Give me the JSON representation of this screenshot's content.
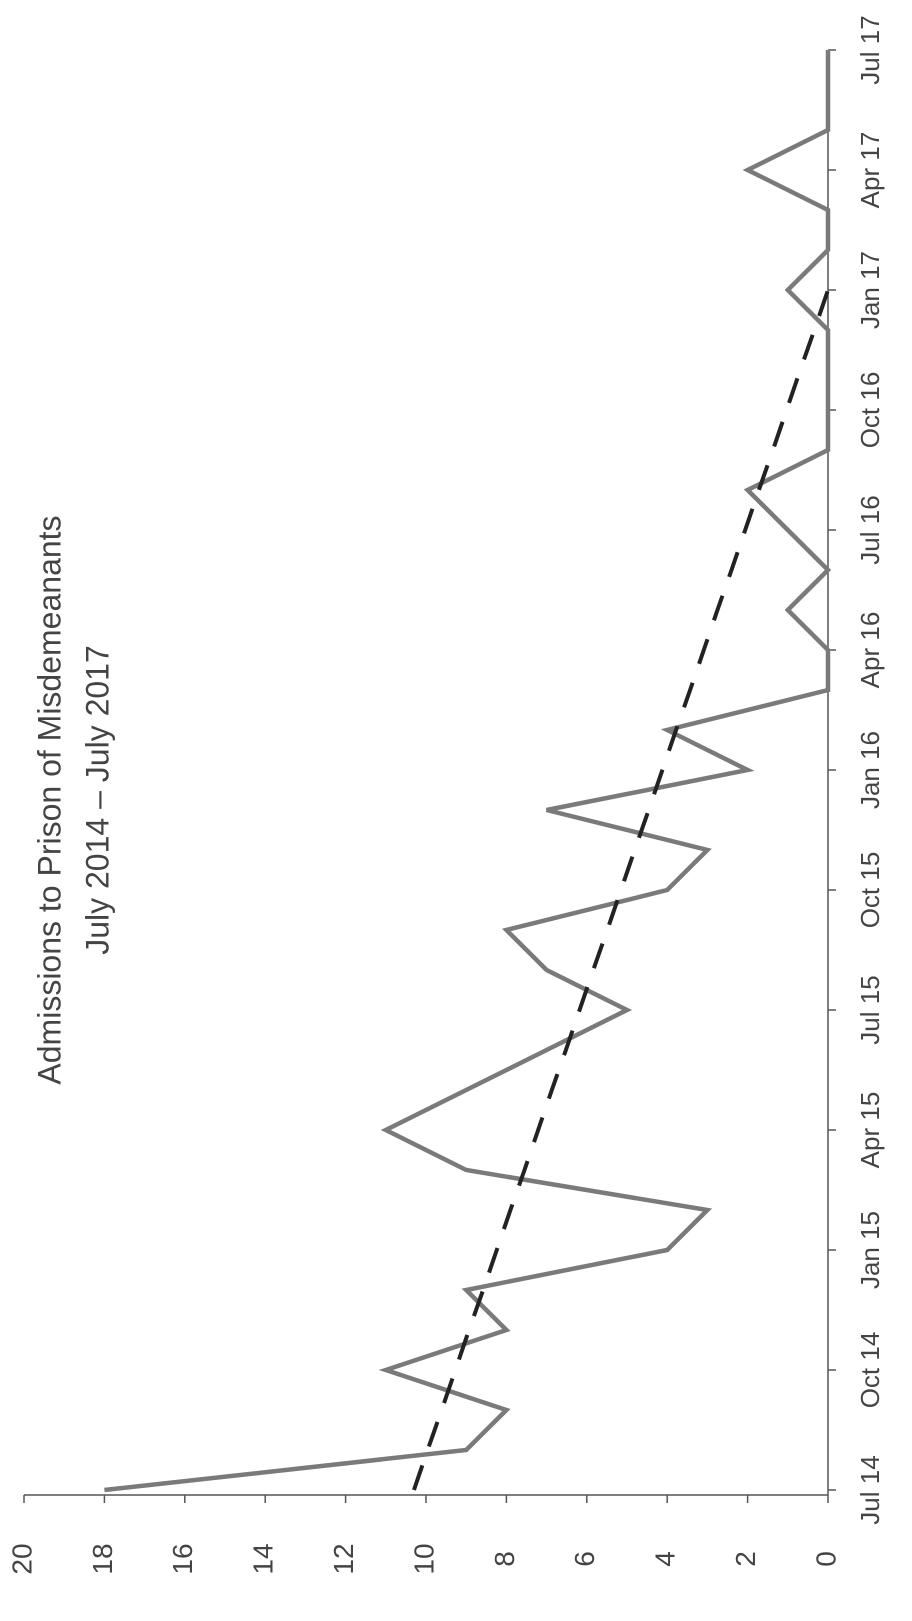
{
  "chart_data": {
    "type": "line",
    "title": "Admissions to Prison of Misdemeanants",
    "subtitle": "July 2014 – July 2017",
    "categories": [
      "Jul 14",
      null,
      null,
      "Oct 14",
      null,
      null,
      "Jan 15",
      null,
      null,
      "Apr 15",
      null,
      null,
      "Jul 15",
      null,
      null,
      "Oct 15",
      null,
      null,
      "Jan 16",
      null,
      null,
      "Apr 16",
      null,
      null,
      "Jul 16",
      null,
      null,
      "Oct 16",
      null,
      null,
      "Jan 17",
      null,
      null,
      "Apr 17",
      null,
      null,
      "Jul 17"
    ],
    "series": [
      {
        "color": "#7a7a7a",
        "style": "solid",
        "values": [
          18,
          9,
          8,
          11,
          8,
          9,
          4,
          3,
          9,
          11,
          9,
          7,
          5,
          7,
          8,
          4,
          3,
          7,
          2,
          4,
          0,
          0,
          1,
          0,
          1,
          2,
          0,
          0,
          0,
          0,
          1,
          0,
          0,
          2,
          0,
          0,
          0
        ]
      },
      {
        "color": "#222222",
        "style": "dashed",
        "values": [
          10.3,
          9.96,
          9.61,
          9.27,
          8.93,
          8.58,
          8.24,
          7.9,
          7.55,
          7.21,
          6.87,
          6.52,
          6.18,
          5.84,
          5.49,
          5.15,
          4.81,
          4.46,
          4.12,
          3.78,
          3.43,
          3.09,
          2.75,
          2.4,
          2.06,
          1.72,
          1.37,
          1.03,
          0.69,
          0.34,
          0.0,
          null,
          null,
          null,
          null,
          null,
          null
        ]
      }
    ],
    "ylim": [
      0,
      20
    ],
    "yticks": [
      0,
      2,
      4,
      6,
      8,
      10,
      12,
      14,
      16,
      18,
      20
    ],
    "grid": false
  }
}
